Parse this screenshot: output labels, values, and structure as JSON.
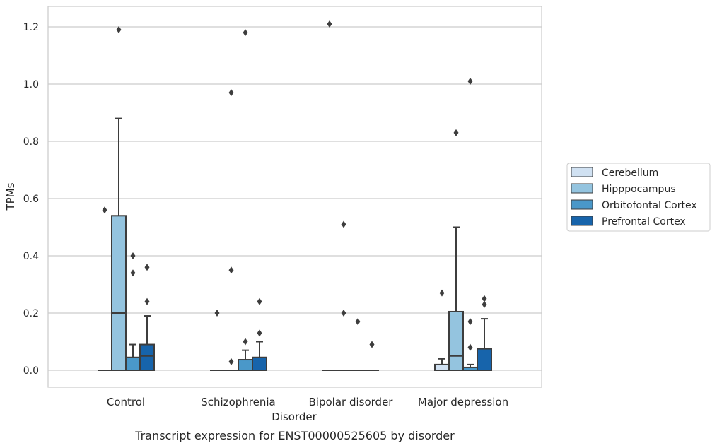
{
  "chart_data": {
    "type": "box",
    "caption": "Transcript expression for ENST00000525605 by disorder",
    "xlabel": "Disorder",
    "ylabel": "TPMs",
    "categories": [
      "Control",
      "Schizophrenia",
      "Bipolar disorder",
      "Major depression"
    ],
    "ylim": [
      -0.06,
      1.27
    ],
    "yticks": [
      {
        "value": 0.0,
        "label": "0.0"
      },
      {
        "value": 0.2,
        "label": "0.2"
      },
      {
        "value": 0.4,
        "label": "0.4"
      },
      {
        "value": 0.6,
        "label": "0.6"
      },
      {
        "value": 0.8,
        "label": "0.8"
      },
      {
        "value": 1.0,
        "label": "1.0"
      },
      {
        "value": 1.2,
        "label": "1.2"
      }
    ],
    "grid": "horizontal",
    "legend_position": "right",
    "series": [
      {
        "name": "Cerebellum",
        "color": "#d0e1f2",
        "boxes": [
          {
            "q1": 0,
            "median": 0,
            "q3": 0,
            "whisker_low": 0,
            "whisker_high": 0,
            "outliers": [
              0.56
            ]
          },
          {
            "q1": 0,
            "median": 0,
            "q3": 0,
            "whisker_low": 0,
            "whisker_high": 0,
            "outliers": [
              0.2
            ]
          },
          {
            "q1": 0,
            "median": 0,
            "q3": 0,
            "whisker_low": 0,
            "whisker_high": 0,
            "outliers": [
              1.21
            ]
          },
          {
            "q1": 0,
            "median": 0,
            "q3": 0.02,
            "whisker_low": 0,
            "whisker_high": 0.04,
            "outliers": [
              0.27
            ]
          }
        ]
      },
      {
        "name": "Hipppocampus",
        "color": "#94c4df",
        "boxes": [
          {
            "q1": 0,
            "median": 0.2,
            "q3": 0.54,
            "whisker_low": 0,
            "whisker_high": 0.88,
            "outliers": [
              1.19
            ]
          },
          {
            "q1": 0,
            "median": 0,
            "q3": 0,
            "whisker_low": 0,
            "whisker_high": 0,
            "outliers": [
              0.97,
              0.35,
              0.03
            ]
          },
          {
            "q1": 0,
            "median": 0,
            "q3": 0,
            "whisker_low": 0,
            "whisker_high": 0,
            "outliers": [
              0.51,
              0.2
            ]
          },
          {
            "q1": 0,
            "median": 0.05,
            "q3": 0.205,
            "whisker_low": 0,
            "whisker_high": 0.5,
            "outliers": [
              0.83
            ]
          }
        ]
      },
      {
        "name": "Orbitofontal Cortex",
        "color": "#4a98c9",
        "boxes": [
          {
            "q1": 0,
            "median": 0,
            "q3": 0.045,
            "whisker_low": 0,
            "whisker_high": 0.09,
            "outliers": [
              0.4,
              0.34
            ]
          },
          {
            "q1": 0,
            "median": 0,
            "q3": 0.037,
            "whisker_low": 0,
            "whisker_high": 0.07,
            "outliers": [
              1.18,
              0.1
            ]
          },
          {
            "q1": 0,
            "median": 0,
            "q3": 0,
            "whisker_low": 0,
            "whisker_high": 0,
            "outliers": [
              0.17
            ]
          },
          {
            "q1": 0,
            "median": 0,
            "q3": 0.01,
            "whisker_low": 0,
            "whisker_high": 0.02,
            "outliers": [
              1.01,
              0.17,
              0.08
            ]
          }
        ]
      },
      {
        "name": "Prefrontal Cortex",
        "color": "#1764ab",
        "boxes": [
          {
            "q1": 0,
            "median": 0.05,
            "q3": 0.09,
            "whisker_low": 0,
            "whisker_high": 0.19,
            "outliers": [
              0.36,
              0.24
            ]
          },
          {
            "q1": 0,
            "median": 0,
            "q3": 0.045,
            "whisker_low": 0,
            "whisker_high": 0.1,
            "outliers": [
              0.24,
              0.13
            ]
          },
          {
            "q1": 0,
            "median": 0,
            "q3": 0,
            "whisker_low": 0,
            "whisker_high": 0,
            "outliers": [
              0.09
            ]
          },
          {
            "q1": 0,
            "median": 0,
            "q3": 0.075,
            "whisker_low": 0,
            "whisker_high": 0.18,
            "outliers": [
              0.25,
              0.23
            ]
          }
        ]
      }
    ]
  }
}
